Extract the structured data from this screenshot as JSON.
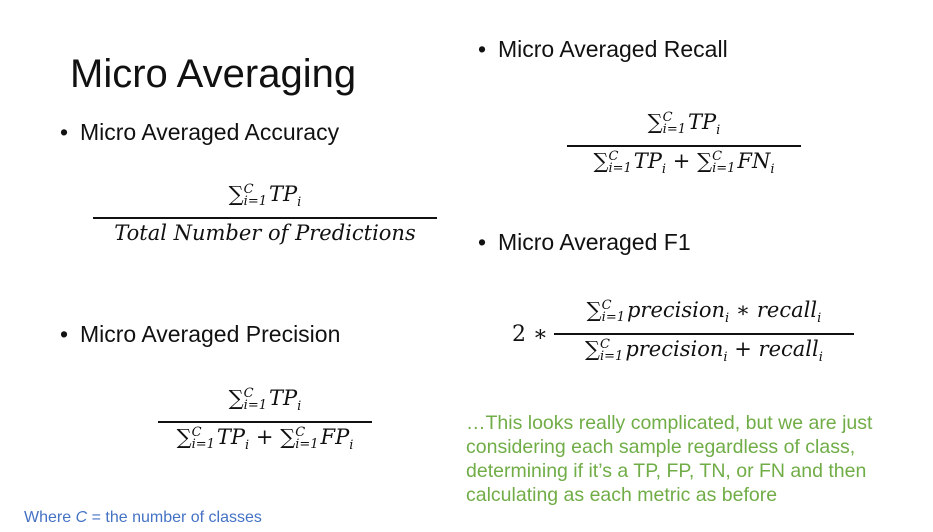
{
  "slide": {
    "title": "Micro Averaging",
    "bullet_glyph": "•",
    "bullets": {
      "accuracy": "Micro Averaged Accuracy",
      "precision": "Micro Averaged Precision",
      "recall": "Micro Averaged Recall",
      "f1": "Micro Averaged F1"
    },
    "formulas": {
      "sum_symbol": "∑",
      "sum_lower": "i=1",
      "sum_upper": "C",
      "accuracy": {
        "numerator_term": "TP",
        "numerator_sub": "i",
        "denominator": "Total Number of Predictions"
      },
      "precision": {
        "numerator_term": "TP",
        "numerator_sub": "i",
        "den_term1": "TP",
        "den_sub1": "i",
        "plus": "+",
        "den_term2": "FP",
        "den_sub2": "i"
      },
      "recall": {
        "numerator_term": "TP",
        "numerator_sub": "i",
        "den_term1": "TP",
        "den_sub1": "i",
        "plus": "+",
        "den_term2": "FN",
        "den_sub2": "i"
      },
      "f1": {
        "prefix": "2 ∗",
        "num_term1": "precision",
        "num_sub1": "i",
        "times": "∗",
        "num_term2": "recall",
        "num_sub2": "i",
        "den_term1": "precision",
        "den_sub1": "i",
        "plus": "+",
        "den_term2": "recall",
        "den_sub2": "i"
      }
    },
    "footnote": {
      "prefix": "Where ",
      "variable": "C",
      "suffix": " = the number of classes"
    },
    "note": "…This looks really complicated, but we are just considering each sample regardless of class, determining if it’s a TP, FP, TN, or FN and then calculating as each metric as before",
    "colors": {
      "footnote": "#4472c4",
      "note": "#70ad47",
      "text": "#111111"
    }
  }
}
